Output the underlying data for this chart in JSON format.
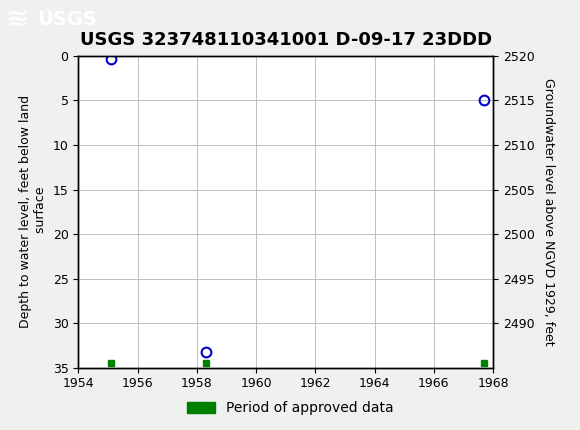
{
  "title": "USGS 323748110341001 D-09-17 23DDD",
  "ylabel_left": "Depth to water level, feet below land\n surface",
  "ylabel_right": "Groundwater level above NGVD 1929, feet",
  "xlim": [
    1954,
    1968
  ],
  "ylim_left_bottom": 35,
  "ylim_left_top": 0,
  "ylim_right_top": 2520,
  "ylim_right_bottom": 2485,
  "xticks": [
    1954,
    1956,
    1958,
    1960,
    1962,
    1964,
    1966,
    1968
  ],
  "yticks_left": [
    0,
    5,
    10,
    15,
    20,
    25,
    30,
    35
  ],
  "yticks_right": [
    2520,
    2515,
    2510,
    2505,
    2500,
    2495,
    2490
  ],
  "blue_points_x": [
    1955.1,
    1958.3,
    1967.7
  ],
  "blue_points_y": [
    0.4,
    33.2,
    5.0
  ],
  "green_points_x": [
    1955.1,
    1958.3,
    1967.7
  ],
  "green_points_y": [
    34.5,
    34.5,
    34.5
  ],
  "header_color": "#1a6b3c",
  "background_color": "#f0f0f0",
  "plot_bg_color": "#ffffff",
  "grid_color": "#c0c0c0",
  "blue_marker_color": "#0000cc",
  "green_marker_color": "#008000",
  "title_fontsize": 13,
  "axis_label_fontsize": 9,
  "tick_fontsize": 9,
  "legend_label": "Period of approved data"
}
